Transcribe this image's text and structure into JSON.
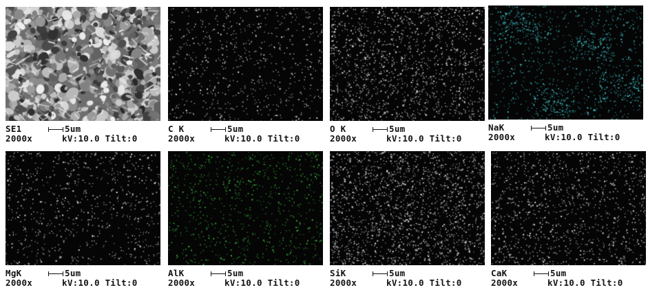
{
  "panels": [
    {
      "element": "SE1",
      "scale": "5um",
      "magnification": "2000x",
      "kv": "kV:10.0",
      "tilt": "Tilt:0",
      "color": "#c8c8c8"
    },
    {
      "element": "C K",
      "scale": "5um",
      "magnification": "2000x",
      "kv": "kV:10.0",
      "tilt": "Tilt:0",
      "color": "#e6e6e6"
    },
    {
      "element": "O K",
      "scale": "5um",
      "magnification": "2000x",
      "kv": "kV:10.0",
      "tilt": "Tilt:0",
      "color": "#e6e6e6"
    },
    {
      "element": "NaK",
      "scale": "5um",
      "magnification": "2000x",
      "kv": "kV:10.0",
      "tilt": "Tilt:0",
      "color": "#3fc3c8"
    },
    {
      "element": "MgK",
      "scale": "5um",
      "magnification": "2000x",
      "kv": "kV:10.0",
      "tilt": "Tilt:0",
      "color": "#e6e6e6"
    },
    {
      "element": "AlK",
      "scale": "5um",
      "magnification": "2000x",
      "kv": "kV:10.0",
      "tilt": "Tilt:0",
      "color": "#3fbf3f"
    },
    {
      "element": "SiK",
      "scale": "5um",
      "magnification": "2000x",
      "kv": "kV:10.0",
      "tilt": "Tilt:0",
      "color": "#e6e6e6"
    },
    {
      "element": "CaK",
      "scale": "5um",
      "magnification": "2000x",
      "kv": "kV:10.0",
      "tilt": "Tilt:0",
      "color": "#e6e6e6"
    }
  ]
}
